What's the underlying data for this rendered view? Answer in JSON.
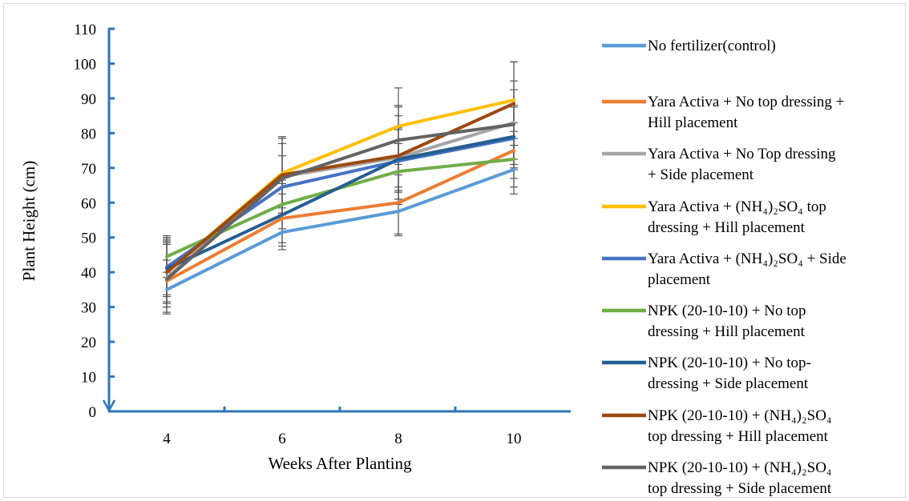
{
  "chart_data": {
    "type": "line",
    "xlabel": "Weeks After Planting",
    "ylabel": "Plant Height (cm)",
    "x": [
      "4",
      "6",
      "8",
      "10"
    ],
    "ylim": [
      0,
      110
    ],
    "yticks": [
      "0",
      "10",
      "20",
      "30",
      "40",
      "50",
      "60",
      "70",
      "80",
      "90",
      "100",
      "110"
    ],
    "grid": false,
    "legend_position": "right",
    "axis_color": "#2e75b6",
    "series": [
      {
        "name": "No fertilizer(control)",
        "name_lines": [
          "No fertilizer(control)"
        ],
        "color": "#5b9bd5",
        "values": [
          35,
          51.5,
          57.5,
          69.5
        ],
        "errors": [
          5,
          5,
          7,
          7
        ]
      },
      {
        "name": "Yara Activa + No top dressing + Hill placement",
        "name_lines": [
          "Yara Activa + No top dressing +",
          "Hill placement"
        ],
        "color": "#ed7d31",
        "values": [
          37.5,
          55.5,
          60,
          75
        ],
        "errors": [
          6,
          7,
          9,
          8
        ]
      },
      {
        "name": "Yara Activa + No Top dressing + Side placement",
        "name_lines": [
          "Yara Activa + No Top dressing",
          "+ Side placement"
        ],
        "color": "#a5a5a5",
        "values": [
          38.5,
          67.5,
          73,
          83
        ],
        "errors": [
          10,
          11,
          12,
          12
        ]
      },
      {
        "name": "Yara Activa + (NH₄)₂SO₄ top dressing + Hill placement",
        "name_lines": [
          "Yara Activa + (NH₄)₂SO₄ top",
          "dressing + Hill placement"
        ],
        "color": "#ffc000",
        "values": [
          40,
          68.5,
          82,
          89.5
        ],
        "errors": [
          9,
          10,
          11,
          11
        ]
      },
      {
        "name": "Yara Activa + (NH₄)₂SO₄ + Side placement",
        "name_lines": [
          "Yara Activa + (NH₄)₂SO₄ + Side",
          "placement"
        ],
        "color": "#4472c4",
        "values": [
          41.5,
          64.5,
          72,
          78.5
        ],
        "errors": [
          8,
          9,
          9,
          9
        ]
      },
      {
        "name": "NPK (20-10-10) + No top dressing + Hill placement",
        "name_lines": [
          "NPK (20-10-10) + No top",
          "dressing + Hill placement"
        ],
        "color": "#70ad47",
        "values": [
          44.5,
          59.5,
          69,
          72.5
        ],
        "errors": [
          6,
          7,
          8,
          8
        ]
      },
      {
        "name": "NPK (20-10-10) + No top-dressing + Side placement",
        "name_lines": [
          "NPK (20-10-10) + No top-",
          "dressing + Side placement"
        ],
        "color": "#255e91",
        "values": [
          41,
          56.5,
          72.5,
          79
        ],
        "errors": [
          8,
          9,
          9,
          9
        ]
      },
      {
        "name": "NPK (20-10-10) + (NH₄)₂SO₄ top dressing + Hill placement",
        "name_lines": [
          "NPK (20-10-10) + (NH₄)₂SO₄",
          "top dressing + Hill placement"
        ],
        "color": "#9e480e",
        "values": [
          40,
          68,
          73.5,
          88.5
        ],
        "errors": [
          10,
          11,
          14,
          12
        ]
      },
      {
        "name": "NPK (20-10-10) + (NH₄)₂SO₄ top dressing + Side placement",
        "name_lines": [
          "NPK (20-10-10) + (NH₄)₂SO₄",
          "top dressing + Side placement"
        ],
        "color": "#636363",
        "values": [
          38,
          67,
          78,
          82.5
        ],
        "errors": [
          10,
          10,
          10,
          10
        ]
      }
    ]
  }
}
